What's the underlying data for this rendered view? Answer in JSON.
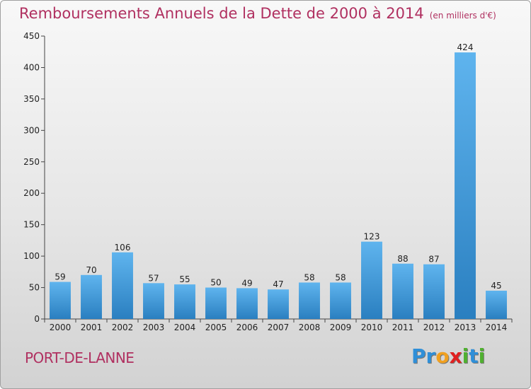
{
  "title": "Remboursements Annuels de la Dette de 2000 à 2014",
  "unit_note": "(en milliers d'€)",
  "commune": "PORT-DE-LANNE",
  "logo": {
    "letters": [
      "P",
      "r",
      "o",
      "x",
      "i",
      "t",
      "i"
    ],
    "colors": [
      "#2f8fd8",
      "#2f8fd8",
      "#f0a020",
      "#e02020",
      "#50b030",
      "#2f8fd8",
      "#50b030"
    ]
  },
  "chart_data": {
    "type": "bar",
    "title": "Remboursements Annuels de la Dette de 2000 à 2014",
    "xlabel": "",
    "ylabel": "",
    "categories": [
      "2000",
      "2001",
      "2002",
      "2003",
      "2004",
      "2005",
      "2006",
      "2007",
      "2008",
      "2009",
      "2010",
      "2011",
      "2012",
      "2013",
      "2014"
    ],
    "values": [
      59,
      70,
      106,
      57,
      55,
      50,
      49,
      47,
      58,
      58,
      123,
      88,
      87,
      424,
      45
    ],
    "ylim": [
      0,
      450
    ],
    "yticks": [
      0,
      50,
      100,
      150,
      200,
      250,
      300,
      350,
      400,
      450
    ],
    "grid": false,
    "bar_color": "#3a9ae0"
  }
}
